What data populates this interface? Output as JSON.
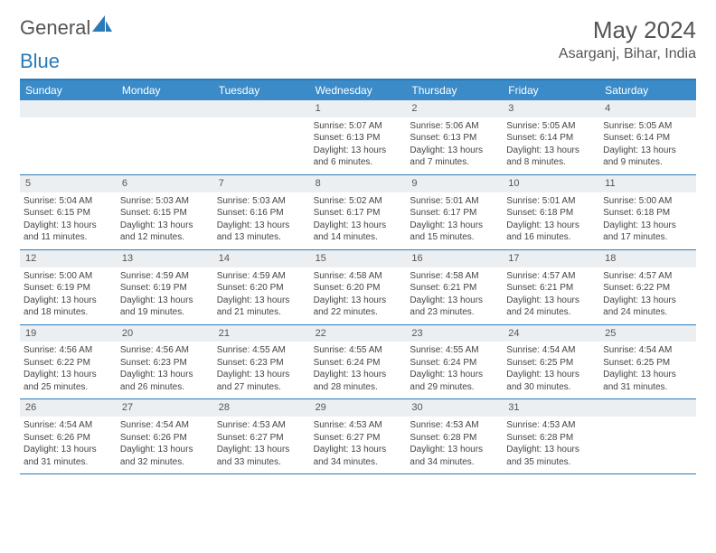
{
  "brand": {
    "text1": "General",
    "text2": "Blue",
    "color_blue": "#2a7ab8",
    "color_gray": "#666666"
  },
  "title": "May 2024",
  "location": "Asarganj, Bihar, India",
  "weekdays": [
    "Sunday",
    "Monday",
    "Tuesday",
    "Wednesday",
    "Thursday",
    "Friday",
    "Saturday"
  ],
  "header_bg": "#3b8bc9",
  "daynum_bg": "#eceff1",
  "border_color": "#2a7ab8",
  "weeks": [
    [
      {
        "n": "",
        "empty": true
      },
      {
        "n": "",
        "empty": true
      },
      {
        "n": "",
        "empty": true
      },
      {
        "n": "1",
        "sr": "5:07 AM",
        "ss": "6:13 PM",
        "dl": "13 hours and 6 minutes."
      },
      {
        "n": "2",
        "sr": "5:06 AM",
        "ss": "6:13 PM",
        "dl": "13 hours and 7 minutes."
      },
      {
        "n": "3",
        "sr": "5:05 AM",
        "ss": "6:14 PM",
        "dl": "13 hours and 8 minutes."
      },
      {
        "n": "4",
        "sr": "5:05 AM",
        "ss": "6:14 PM",
        "dl": "13 hours and 9 minutes."
      }
    ],
    [
      {
        "n": "5",
        "sr": "5:04 AM",
        "ss": "6:15 PM",
        "dl": "13 hours and 11 minutes."
      },
      {
        "n": "6",
        "sr": "5:03 AM",
        "ss": "6:15 PM",
        "dl": "13 hours and 12 minutes."
      },
      {
        "n": "7",
        "sr": "5:03 AM",
        "ss": "6:16 PM",
        "dl": "13 hours and 13 minutes."
      },
      {
        "n": "8",
        "sr": "5:02 AM",
        "ss": "6:17 PM",
        "dl": "13 hours and 14 minutes."
      },
      {
        "n": "9",
        "sr": "5:01 AM",
        "ss": "6:17 PM",
        "dl": "13 hours and 15 minutes."
      },
      {
        "n": "10",
        "sr": "5:01 AM",
        "ss": "6:18 PM",
        "dl": "13 hours and 16 minutes."
      },
      {
        "n": "11",
        "sr": "5:00 AM",
        "ss": "6:18 PM",
        "dl": "13 hours and 17 minutes."
      }
    ],
    [
      {
        "n": "12",
        "sr": "5:00 AM",
        "ss": "6:19 PM",
        "dl": "13 hours and 18 minutes."
      },
      {
        "n": "13",
        "sr": "4:59 AM",
        "ss": "6:19 PM",
        "dl": "13 hours and 19 minutes."
      },
      {
        "n": "14",
        "sr": "4:59 AM",
        "ss": "6:20 PM",
        "dl": "13 hours and 21 minutes."
      },
      {
        "n": "15",
        "sr": "4:58 AM",
        "ss": "6:20 PM",
        "dl": "13 hours and 22 minutes."
      },
      {
        "n": "16",
        "sr": "4:58 AM",
        "ss": "6:21 PM",
        "dl": "13 hours and 23 minutes."
      },
      {
        "n": "17",
        "sr": "4:57 AM",
        "ss": "6:21 PM",
        "dl": "13 hours and 24 minutes."
      },
      {
        "n": "18",
        "sr": "4:57 AM",
        "ss": "6:22 PM",
        "dl": "13 hours and 24 minutes."
      }
    ],
    [
      {
        "n": "19",
        "sr": "4:56 AM",
        "ss": "6:22 PM",
        "dl": "13 hours and 25 minutes."
      },
      {
        "n": "20",
        "sr": "4:56 AM",
        "ss": "6:23 PM",
        "dl": "13 hours and 26 minutes."
      },
      {
        "n": "21",
        "sr": "4:55 AM",
        "ss": "6:23 PM",
        "dl": "13 hours and 27 minutes."
      },
      {
        "n": "22",
        "sr": "4:55 AM",
        "ss": "6:24 PM",
        "dl": "13 hours and 28 minutes."
      },
      {
        "n": "23",
        "sr": "4:55 AM",
        "ss": "6:24 PM",
        "dl": "13 hours and 29 minutes."
      },
      {
        "n": "24",
        "sr": "4:54 AM",
        "ss": "6:25 PM",
        "dl": "13 hours and 30 minutes."
      },
      {
        "n": "25",
        "sr": "4:54 AM",
        "ss": "6:25 PM",
        "dl": "13 hours and 31 minutes."
      }
    ],
    [
      {
        "n": "26",
        "sr": "4:54 AM",
        "ss": "6:26 PM",
        "dl": "13 hours and 31 minutes."
      },
      {
        "n": "27",
        "sr": "4:54 AM",
        "ss": "6:26 PM",
        "dl": "13 hours and 32 minutes."
      },
      {
        "n": "28",
        "sr": "4:53 AM",
        "ss": "6:27 PM",
        "dl": "13 hours and 33 minutes."
      },
      {
        "n": "29",
        "sr": "4:53 AM",
        "ss": "6:27 PM",
        "dl": "13 hours and 34 minutes."
      },
      {
        "n": "30",
        "sr": "4:53 AM",
        "ss": "6:28 PM",
        "dl": "13 hours and 34 minutes."
      },
      {
        "n": "31",
        "sr": "4:53 AM",
        "ss": "6:28 PM",
        "dl": "13 hours and 35 minutes."
      },
      {
        "n": "",
        "empty": true
      }
    ]
  ],
  "labels": {
    "sunrise": "Sunrise:",
    "sunset": "Sunset:",
    "daylight": "Daylight:"
  }
}
